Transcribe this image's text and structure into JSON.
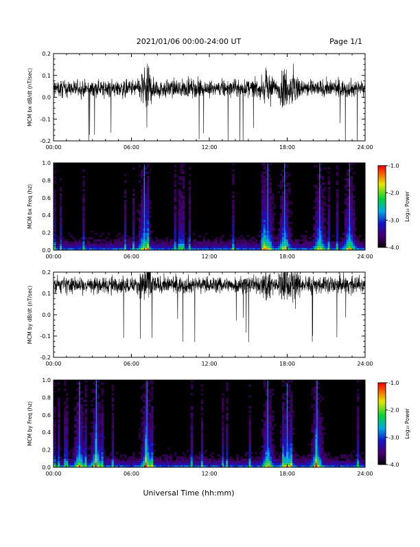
{
  "header": {
    "title": "2021/01/06  00:00-24:00 UT",
    "page": "Page 1/1"
  },
  "footer": {
    "xlabel": "Universal Time (hh:mm)"
  },
  "colorbar": {
    "label": "Log₁₀ Power",
    "ticks": [
      "-1.0",
      "-2.0",
      "-3.0",
      "-4.0"
    ],
    "range": [
      -4.0,
      -1.0
    ]
  },
  "chart_data": [
    {
      "type": "line",
      "ylabel": "MCM bx dB/dt (nT/sec)",
      "xlim": [
        "00:00",
        "24:00"
      ],
      "ylim": [
        -0.2,
        0.2
      ],
      "xticks": [
        "00:00",
        "06:00",
        "12:00",
        "18:00",
        "24:00"
      ],
      "yticks": [
        "-0.2",
        "-0.1",
        "0.0",
        "0.1",
        "0.2"
      ],
      "baseline": 0.04,
      "active_times_h": [
        7.0,
        7.3,
        16.5,
        17.8,
        18.5
      ]
    },
    {
      "type": "heatmap",
      "ylabel": "MCM bx Freq (hz)",
      "xlim": [
        "00:00",
        "24:00"
      ],
      "ylim": [
        0.0,
        1.0
      ],
      "xticks": [
        "00:00",
        "06:00",
        "12:00",
        "18:00",
        "24:00"
      ],
      "yticks": [
        "0.0",
        "0.2",
        "0.4",
        "0.6",
        "0.8",
        "1.0"
      ],
      "active_times_h": [
        7.0,
        16.5,
        17.8,
        20.5,
        22.8
      ]
    },
    {
      "type": "line",
      "ylabel": "MCM by dB/dt (nT/sec)",
      "xlim": [
        "00:00",
        "24:00"
      ],
      "ylim": [
        -0.2,
        0.2
      ],
      "xticks": [
        "00:00",
        "06:00",
        "12:00",
        "18:00",
        "24:00"
      ],
      "yticks": [
        "-0.2",
        "-0.1",
        "0.0",
        "0.1",
        "0.2"
      ],
      "baseline": 0.14,
      "active_times_h": [
        7.0,
        7.3,
        16.5,
        17.8,
        18.5
      ]
    },
    {
      "type": "heatmap",
      "ylabel": "MCM by Freq (hz)",
      "xlim": [
        "00:00",
        "24:00"
      ],
      "ylim": [
        0.0,
        1.0
      ],
      "xticks": [
        "00:00",
        "06:00",
        "12:00",
        "18:00",
        "24:00"
      ],
      "yticks": [
        "0.0",
        "0.2",
        "0.4",
        "0.6",
        "0.8",
        "1.0"
      ],
      "active_times_h": [
        2.0,
        3.3,
        7.2,
        16.5,
        18.0,
        20.3
      ]
    }
  ]
}
